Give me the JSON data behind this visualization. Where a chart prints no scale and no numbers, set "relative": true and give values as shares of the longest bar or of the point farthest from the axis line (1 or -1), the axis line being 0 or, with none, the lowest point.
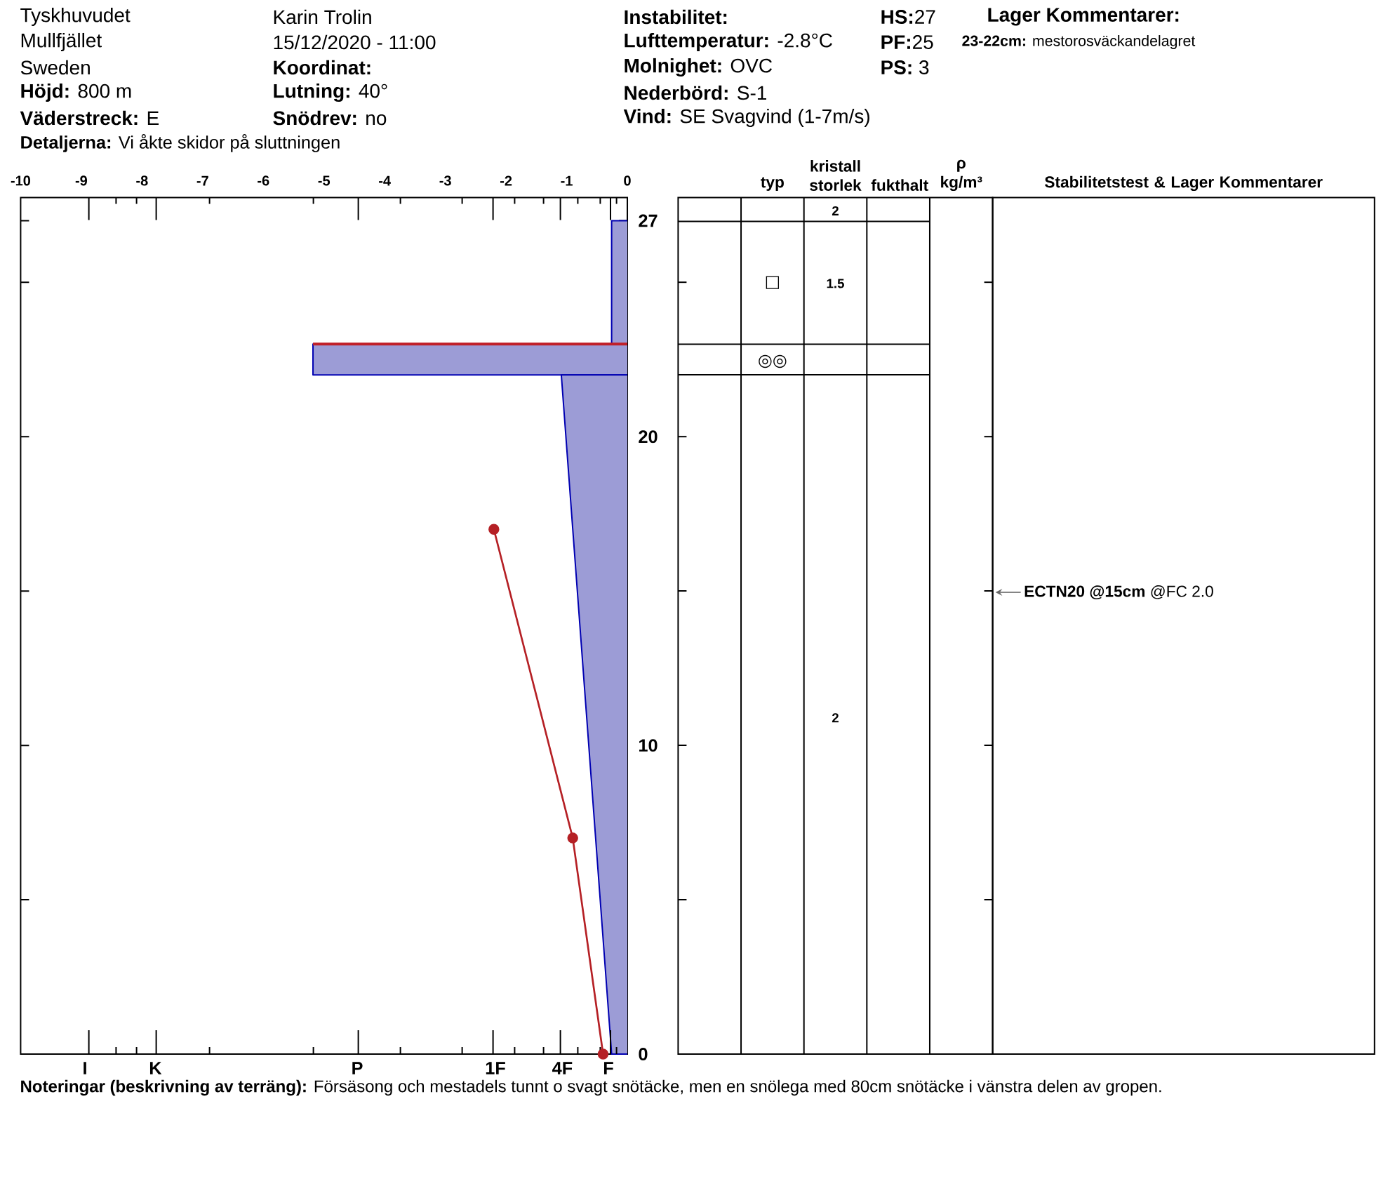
{
  "chart_data": [
    {
      "type": "area",
      "orientation": "horizontal",
      "relative": true,
      "ylim": [
        0,
        27.75
      ],
      "yticks": [
        0,
        {
          "value": 5,
          "label": null
        },
        10,
        {
          "value": 15,
          "label": null
        },
        20,
        {
          "value": 25,
          "label": null
        },
        27
      ],
      "series": [
        {
          "color": "#9c9cd6",
          "x": [
            27,
            23
          ],
          "values": [
            -0.05,
            -0.05
          ]
        },
        {
          "color": "#9c9cd6",
          "x": [
            23,
            22
          ],
          "values": [
            -1,
            -1
          ]
        },
        {
          "color": "#9c9cd6",
          "x": [
            22,
            0
          ],
          "values": [
            -0.21,
            -0.05
          ]
        }
      ],
      "ref_lines": [
        {
          "axis": "y",
          "value": 23,
          "color": "#c0202a"
        }
      ],
      "annotations": [
        "Tyskhuvudet",
        "Mullfjället",
        "Sweden",
        "**Höjd:** 800 m",
        "**Väderstreck:** E",
        "**Detaljerna:** Vi åkte skidor på sluttningen",
        "Karin Trolin",
        "15/12/2020 - 11:00",
        "Koordinat:",
        "**Lutning:** 40°",
        "**Snödrev:** no",
        "Instabilitet:",
        "**Lufttemperatur:** -2.8°C",
        "**Molnighet:** OVC",
        "**Nederbörd:** S-1",
        "**Vind:** SE Svagvind (1-7m/s)",
        "**HS:**27",
        "**PF:**25",
        "**PS:** 3",
        "Lager Kommentarer:",
        "**23-22cm:** mestorosväckandelagret",
        "I",
        "K",
        "P",
        "1F",
        "4F",
        "F",
        "**Noteringar (beskrivning av terräng):** Försäsong och mestadels tunnt o svagt snötäcke, men en snölega med 80cm snötäcke i vänstra delen av gropen."
      ]
    },
    {
      "type": "line",
      "xlim": [
        -10,
        0
      ],
      "xticks": [
        -10,
        -9,
        -8,
        -7,
        -6,
        -5,
        -4,
        -3,
        -2,
        -1,
        0
      ],
      "ylim": [
        0,
        27.75
      ],
      "tick_labels": "x",
      "marker": "circle",
      "series": [
        {
          "color": "#b52025",
          "x": [
            -2.2,
            -0.9,
            -0.4
          ],
          "values": [
            17,
            7,
            0
          ]
        }
      ]
    },
    {
      "type": "other",
      "categories": [
        null,
        "typ",
        "kristall storlek",
        "fukthalt",
        "ρ kg/m³"
      ],
      "annotations": [
        "2",
        "□",
        "1.5",
        "◎◎",
        "2"
      ]
    },
    {
      "type": "other",
      "categories": [
        "Stabilitetstest & Lager Kommentarer"
      ],
      "annotations": [
        "**ECTN20 @15cm** @FC 2.0"
      ]
    }
  ]
}
